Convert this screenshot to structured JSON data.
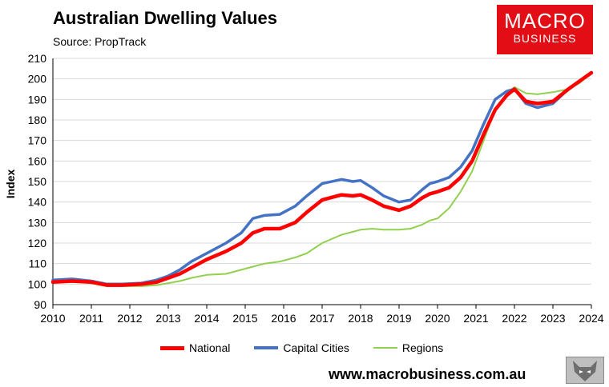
{
  "header": {
    "title": "Australian Dwelling Values",
    "source": "Source: PropTrack"
  },
  "logo": {
    "line1": "MACRO",
    "line2": "BUSINESS",
    "color": "#e20d15"
  },
  "footer": {
    "url": "www.macrobusiness.com.au"
  },
  "wolf_logo": {
    "icon": "wolf-icon"
  },
  "chart_data": {
    "type": "line",
    "title": "Australian Dwelling Values",
    "xlabel": "",
    "ylabel": "Index",
    "xlim": [
      2010,
      2024
    ],
    "ylim": [
      90,
      210
    ],
    "yticks": [
      90,
      100,
      110,
      120,
      130,
      140,
      150,
      160,
      170,
      180,
      190,
      200,
      210
    ],
    "xticks": [
      2010,
      2011,
      2012,
      2013,
      2014,
      2015,
      2016,
      2017,
      2018,
      2019,
      2020,
      2021,
      2022,
      2023,
      2024
    ],
    "legend_position": "bottom",
    "series": [
      {
        "name": "National",
        "color": "#ff0000",
        "x": [
          2010.0,
          2010.5,
          2011.0,
          2011.4,
          2011.8,
          2012.3,
          2012.7,
          2013.0,
          2013.3,
          2013.6,
          2014.0,
          2014.5,
          2014.9,
          2015.2,
          2015.5,
          2015.9,
          2016.3,
          2016.6,
          2017.0,
          2017.5,
          2017.8,
          2018.0,
          2018.3,
          2018.6,
          2019.0,
          2019.3,
          2019.6,
          2019.8,
          2020.0,
          2020.3,
          2020.6,
          2020.9,
          2021.2,
          2021.5,
          2021.8,
          2022.0,
          2022.3,
          2022.6,
          2023.0,
          2023.4,
          2023.7,
          2024.0
        ],
        "y": [
          101,
          101.5,
          101,
          99.5,
          99.5,
          100,
          101,
          103,
          105,
          108,
          112,
          116,
          120,
          125,
          127,
          127,
          130,
          135,
          141,
          143.5,
          143,
          143.5,
          141,
          138,
          136,
          138,
          142,
          144,
          145,
          147,
          152,
          160,
          173,
          185,
          192,
          195,
          189,
          188,
          189,
          195,
          199,
          203
        ]
      },
      {
        "name": "Capital Cities",
        "color": "#4472c4",
        "x": [
          2010.0,
          2010.5,
          2011.0,
          2011.4,
          2011.8,
          2012.3,
          2012.7,
          2013.0,
          2013.3,
          2013.6,
          2014.0,
          2014.5,
          2014.9,
          2015.2,
          2015.5,
          2015.9,
          2016.3,
          2016.6,
          2017.0,
          2017.5,
          2017.8,
          2018.0,
          2018.3,
          2018.6,
          2019.0,
          2019.3,
          2019.6,
          2019.8,
          2020.0,
          2020.3,
          2020.6,
          2020.9,
          2021.2,
          2021.5,
          2021.8,
          2022.0,
          2022.3,
          2022.6,
          2023.0,
          2023.4,
          2023.7,
          2024.0
        ],
        "y": [
          102,
          102.5,
          101.5,
          100,
          100,
          100.5,
          102,
          104,
          107,
          111,
          115,
          120,
          125,
          132,
          133.5,
          134,
          138,
          143,
          149,
          151,
          150,
          150.5,
          147,
          143,
          140,
          141,
          146,
          149,
          150,
          152,
          157,
          165,
          178,
          190,
          194,
          195,
          188,
          186,
          188,
          195,
          199,
          203
        ]
      },
      {
        "name": "Regions",
        "color": "#92d050",
        "x": [
          2010.0,
          2010.5,
          2011.0,
          2011.4,
          2011.8,
          2012.3,
          2012.7,
          2013.0,
          2013.3,
          2013.6,
          2014.0,
          2014.5,
          2014.9,
          2015.2,
          2015.5,
          2015.9,
          2016.3,
          2016.6,
          2017.0,
          2017.5,
          2017.8,
          2018.0,
          2018.3,
          2018.6,
          2019.0,
          2019.3,
          2019.6,
          2019.8,
          2020.0,
          2020.3,
          2020.6,
          2020.9,
          2021.2,
          2021.5,
          2021.8,
          2022.0,
          2022.3,
          2022.6,
          2023.0,
          2023.4,
          2023.7,
          2024.0
        ],
        "y": [
          101,
          101,
          100.5,
          99,
          99,
          99,
          99.5,
          100.5,
          101.5,
          103,
          104.5,
          105,
          107,
          108.5,
          110,
          111,
          113,
          115,
          120,
          124,
          125.5,
          126.5,
          127,
          126.5,
          126.5,
          127,
          129,
          131,
          132,
          137,
          145,
          155,
          170,
          185,
          193,
          196,
          193,
          192.5,
          193.5,
          195,
          198,
          203
        ]
      }
    ]
  }
}
